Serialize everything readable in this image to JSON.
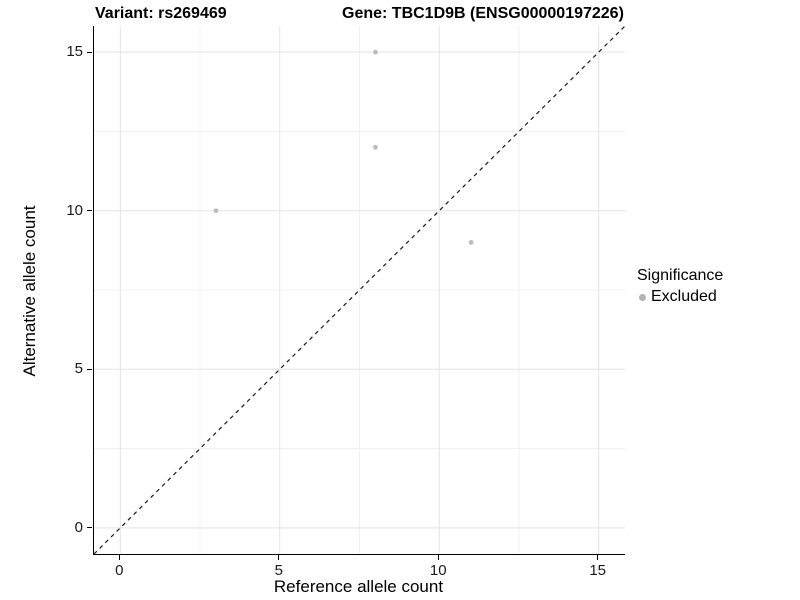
{
  "chart_data": {
    "type": "scatter",
    "title_left": "Variant: rs269469",
    "title_right": "Gene: TBC1D9B (ENSG00000197226)",
    "xlabel": "Reference allele count",
    "ylabel": "Alternative allele count",
    "xlim": [
      -0.825,
      15.825
    ],
    "ylim": [
      -0.825,
      15.825
    ],
    "x_ticks": [
      0,
      5,
      10,
      15
    ],
    "y_ticks": [
      0,
      5,
      10,
      15
    ],
    "x_tick_labels": [
      "0",
      "5",
      "10",
      "15"
    ],
    "y_tick_labels": [
      "0",
      "5",
      "10",
      "15"
    ],
    "minor_ticks": [
      2.5,
      7.5,
      12.5
    ],
    "grid": true,
    "colors": {
      "point": "#bcbcbc",
      "major_grid": "#e3e3e3",
      "minor_grid": "#f1f1f1",
      "identity_line": "#1a1a1a",
      "axis": "#000000"
    },
    "series": [
      {
        "name": "Excluded",
        "color": "#bcbcbc",
        "points": [
          [
            8,
            15
          ],
          [
            8,
            12
          ],
          [
            3,
            10
          ],
          [
            11,
            9
          ]
        ]
      }
    ],
    "reference_line": {
      "kind": "identity",
      "style": "dashed"
    },
    "legend": {
      "position": "right",
      "title": "Significance",
      "items": [
        {
          "label": "Excluded",
          "color": "#b3b3b3"
        }
      ]
    }
  }
}
